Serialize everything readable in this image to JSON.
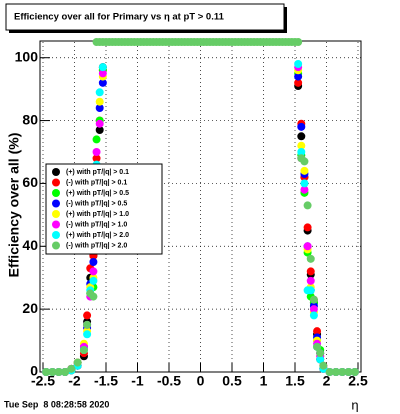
{
  "chart_data": {
    "type": "scatter",
    "title": "Efficiency over all for Primary vs   η at pT > 0.11",
    "y_label": "Efficiency over all (%)",
    "x_label": "η",
    "timestamp": "Tue Sep  8 08:28:58 2020",
    "xlim": [
      -2.5,
      2.5
    ],
    "ylim": [
      0,
      105
    ],
    "xticks": [
      -2.5,
      -2,
      -1.5,
      -1,
      -0.5,
      0,
      0.5,
      1,
      1.5,
      2,
      2.5
    ],
    "yticks": [
      0,
      20,
      40,
      60,
      80,
      100
    ],
    "grid": true,
    "series": [
      {
        "name": "(+) with pT/|q| > 0.1",
        "color": "#000000",
        "x": [
          -2.45,
          -2.35,
          -2.25,
          -2.15,
          -2.05,
          -1.95,
          -1.85,
          -1.8,
          -1.75,
          -1.7,
          -1.65,
          -1.6,
          -1.55,
          1.55,
          1.6,
          1.65,
          1.7,
          1.75,
          1.8,
          1.85,
          1.9,
          1.95,
          2.05,
          2.15,
          2.25,
          2.35,
          2.45
        ],
        "values": [
          0,
          0,
          0,
          0,
          0.5,
          2,
          5,
          16,
          30,
          37,
          60,
          77,
          97,
          91,
          75,
          62,
          45,
          31,
          22,
          12,
          4,
          1,
          0,
          0,
          0,
          0,
          0
        ]
      },
      {
        "name": "(-) with pT/|q| > 0.1",
        "color": "#ff0000",
        "x": [
          -2.45,
          -2.35,
          -2.25,
          -2.15,
          -2.05,
          -1.95,
          -1.85,
          -1.8,
          -1.75,
          -1.7,
          -1.65,
          -1.6,
          -1.55,
          1.55,
          1.6,
          1.65,
          1.7,
          1.75,
          1.8,
          1.85,
          1.9,
          1.95,
          2.05,
          2.15,
          2.25,
          2.35,
          2.45
        ],
        "values": [
          0,
          0,
          0,
          0,
          1,
          3,
          6,
          18,
          33,
          37,
          68,
          80,
          96,
          92,
          79,
          62,
          46,
          32,
          23,
          13,
          6,
          2,
          0,
          0,
          0,
          0,
          0
        ]
      },
      {
        "name": "(+) with pT/|q| > 0.5",
        "color": "#00ff00",
        "x": [
          -2.45,
          -2.35,
          -2.25,
          -2.15,
          -2.05,
          -1.95,
          -1.85,
          -1.8,
          -1.75,
          -1.7,
          -1.65,
          -1.6,
          -1.55,
          1.55,
          1.6,
          1.65,
          1.7,
          1.75,
          1.8,
          1.85,
          1.9,
          1.95,
          2.05,
          2.15,
          2.25,
          2.35,
          2.45
        ],
        "values": [
          0,
          0,
          0,
          0,
          1,
          2,
          7,
          15,
          25,
          27,
          74,
          80,
          96,
          95,
          69,
          57,
          38,
          24,
          22,
          10,
          7,
          1,
          0,
          0,
          0,
          0,
          0
        ]
      },
      {
        "name": "(-) with pT/|q| > 0.5",
        "color": "#0000ff",
        "x": [
          -2.45,
          -2.35,
          -2.25,
          -2.15,
          -2.05,
          -1.95,
          -1.85,
          -1.8,
          -1.75,
          -1.7,
          -1.65,
          -1.6,
          -1.55,
          1.55,
          1.6,
          1.65,
          1.7,
          1.75,
          1.8,
          1.85,
          1.9,
          1.95,
          2.05,
          2.15,
          2.25,
          2.35,
          2.45
        ],
        "values": [
          0,
          0,
          0,
          0,
          1,
          3,
          8,
          14,
          28,
          35,
          62,
          84,
          92,
          94,
          78,
          63,
          40,
          26,
          21,
          11,
          6,
          1,
          0,
          0,
          0,
          0,
          0
        ]
      },
      {
        "name": "(+) with pT/|q| > 1.0",
        "color": "#ffff00",
        "x": [
          -2.45,
          -2.35,
          -2.25,
          -2.15,
          -2.05,
          -1.95,
          -1.85,
          -1.8,
          -1.75,
          -1.7,
          -1.65,
          -1.6,
          -1.55,
          1.55,
          1.6,
          1.65,
          1.7,
          1.75,
          1.8,
          1.85,
          1.9,
          1.95,
          2.05,
          2.15,
          2.25,
          2.35,
          2.45
        ],
        "values": [
          0,
          0,
          0,
          0,
          1,
          3,
          9,
          13,
          27,
          30,
          65,
          86,
          94,
          96,
          72,
          64,
          39,
          27,
          19,
          10,
          5,
          1,
          0,
          0,
          0,
          0,
          0
        ]
      },
      {
        "name": "(-) with pT/|q| > 1.0",
        "color": "#ff00ff",
        "x": [
          -2.45,
          -2.35,
          -2.25,
          -2.15,
          -2.05,
          -1.95,
          -1.85,
          -1.8,
          -1.75,
          -1.7,
          -1.65,
          -1.6,
          -1.55,
          1.55,
          1.6,
          1.65,
          1.7,
          1.75,
          1.8,
          1.85,
          1.9,
          1.95,
          2.05,
          2.15,
          2.25,
          2.35,
          2.45
        ],
        "values": [
          0,
          0,
          0,
          0,
          1,
          2,
          8,
          15,
          24,
          32,
          70,
          79,
          95,
          97,
          68,
          58,
          40,
          29,
          20,
          9,
          5,
          1,
          0,
          0,
          0,
          0,
          0
        ]
      },
      {
        "name": "(+) with pT/|q| > 2.0",
        "color": "#00ffff",
        "x": [
          -2.45,
          -2.35,
          -2.25,
          -2.15,
          -2.05,
          -1.95,
          -1.85,
          -1.8,
          -1.75,
          -1.7,
          -1.65,
          -1.6,
          -1.55,
          1.55,
          1.6,
          1.65,
          1.7,
          1.75,
          1.8,
          1.85,
          1.9,
          1.95,
          2.05,
          2.15,
          2.25,
          2.35,
          2.45
        ],
        "values": [
          0,
          0,
          0,
          0,
          0.5,
          2,
          7,
          12,
          26,
          29,
          66,
          89,
          97,
          98,
          70,
          60,
          26,
          26,
          18,
          8,
          4,
          1,
          0,
          0,
          0,
          0,
          0
        ]
      },
      {
        "name": "(-) with pT/|q| > 2.0",
        "color": "#66cc66",
        "x": [
          -2.45,
          -2.35,
          -2.25,
          -2.15,
          -2.05,
          -1.95,
          -1.85,
          -1.8,
          -1.75,
          -1.7,
          -1.65,
          -1.6,
          -1.55,
          -1.5,
          -1.45,
          -1.4,
          -1.35,
          -1.3,
          -1.25,
          -1.2,
          -1.15,
          -1.1,
          -1.05,
          -1,
          -0.95,
          -0.9,
          -0.85,
          -0.8,
          -0.75,
          -0.7,
          -0.65,
          -0.6,
          -0.55,
          -0.5,
          -0.45,
          -0.4,
          -0.35,
          -0.3,
          -0.25,
          -0.2,
          -0.15,
          -0.1,
          -0.05,
          0,
          0.05,
          0.1,
          0.15,
          0.2,
          0.25,
          0.3,
          0.35,
          0.4,
          0.45,
          0.5,
          0.55,
          0.6,
          0.65,
          0.7,
          0.75,
          0.8,
          0.85,
          0.9,
          0.95,
          1,
          1.05,
          1.1,
          1.15,
          1.2,
          1.25,
          1.3,
          1.35,
          1.4,
          1.45,
          1.5,
          1.55,
          1.6,
          1.65,
          1.7,
          1.75,
          1.8,
          1.85,
          1.9,
          1.95,
          2.05,
          2.15,
          2.25,
          2.35,
          2.45
        ],
        "values": [
          0,
          0,
          0,
          0,
          1,
          3,
          7,
          15,
          25,
          24,
          105,
          105,
          105,
          105,
          105,
          105,
          105,
          105,
          105,
          105,
          105,
          105,
          105,
          105,
          105,
          105,
          105,
          105,
          105,
          105,
          105,
          105,
          105,
          105,
          105,
          105,
          105,
          105,
          105,
          105,
          105,
          105,
          105,
          105,
          105,
          105,
          105,
          105,
          105,
          105,
          105,
          105,
          105,
          105,
          105,
          105,
          105,
          105,
          105,
          105,
          105,
          105,
          105,
          105,
          105,
          105,
          105,
          105,
          105,
          105,
          105,
          105,
          105,
          105,
          105,
          68,
          67,
          53,
          36,
          23,
          8,
          6,
          2,
          0,
          0,
          0,
          0,
          0
        ]
      }
    ]
  }
}
